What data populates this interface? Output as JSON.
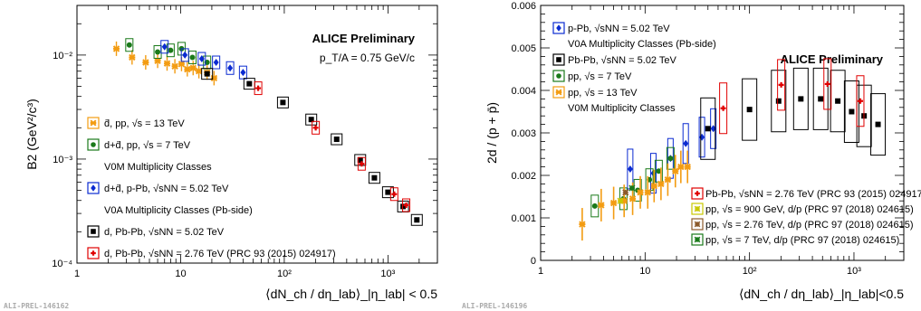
{
  "chart_data": [
    {
      "type": "scatter",
      "title": "ALICE Preliminary",
      "subtitle": "p_T/A = 0.75 GeV/c",
      "xlabel": "⟨dN_ch / dη_lab⟩_|η_lab| < 0.5",
      "ylabel": "B2 (GeV²/c³)",
      "xscale": "log",
      "yscale": "log",
      "xlim": [
        1,
        3000
      ],
      "ylim": [
        0.0001,
        0.03
      ],
      "x_tick_labels": [
        "1",
        "10",
        "10²",
        "10³"
      ],
      "y_tick_labels": [
        "10⁻⁴",
        "10⁻³",
        "10⁻²"
      ],
      "watermark": "ALI-PREL-146162",
      "legend": [
        {
          "text": "d̄, pp, √s = 13 TeV"
        },
        {
          "text": "d+d̄, pp, √s = 7 TeV"
        },
        {
          "text": "V0M Multiplicity Classes"
        },
        {
          "text": "d+d̄, p-Pb, √sNN = 5.02 TeV"
        },
        {
          "text": "V0A Multiplicity Classes (Pb-side)"
        },
        {
          "text": "d, Pb-Pb, √sNN = 5.02 TeV"
        },
        {
          "text": "d, Pb-Pb, √sNN = 2.76 TeV (PRC 93 (2015) 024917)"
        }
      ],
      "series": [
        {
          "color": "#f39c12",
          "marker": "star",
          "x": [
            2.4,
            3.4,
            4.6,
            6.0,
            7.4,
            8.8,
            10.2,
            11.6,
            13.2,
            15.0,
            18.0,
            21.0
          ],
          "y": [
            0.0115,
            0.0095,
            0.0085,
            0.0088,
            0.0083,
            0.0078,
            0.0082,
            0.0073,
            0.0075,
            0.007,
            0.0068,
            0.006
          ]
        },
        {
          "color": "#1a7a1a",
          "marker": "circle",
          "x": [
            3.2,
            6.0,
            8.0,
            10.2,
            13.0,
            18.0
          ],
          "y": [
            0.0125,
            0.0107,
            0.0111,
            0.0115,
            0.0095,
            0.0085
          ]
        },
        {
          "color": "#0b2bd1",
          "marker": "diamond",
          "x": [
            7.0,
            11.0,
            16.0,
            22.0,
            30.0,
            40.0
          ],
          "y": [
            0.012,
            0.01,
            0.0092,
            0.0085,
            0.0075,
            0.0068
          ]
        },
        {
          "color": "#000000",
          "marker": "square",
          "x": [
            18,
            46,
            97,
            182,
            320,
            540,
            740,
            1000,
            1400,
            1900
          ],
          "y": [
            0.0066,
            0.0053,
            0.0035,
            0.0024,
            0.00155,
            0.00098,
            0.00066,
            0.00048,
            0.00035,
            0.00026
          ]
        },
        {
          "color": "#e00000",
          "marker": "cross",
          "x": [
            56,
            201,
            558,
            1150,
            1500
          ],
          "y": [
            0.0048,
            0.002,
            0.0009,
            0.00046,
            0.00036
          ]
        }
      ]
    },
    {
      "type": "scatter",
      "title": "ALICE Preliminary",
      "xlabel": "⟨dN_ch / dη_lab⟩_|η_lab|<0.5",
      "ylabel": "2d / (p + p̄)",
      "xscale": "log",
      "xlim": [
        1,
        3000
      ],
      "ylim": [
        0,
        0.006
      ],
      "x_tick_labels": [
        "1",
        "10",
        "10²",
        "10³"
      ],
      "y_tick_labels": [
        "0",
        "0.001",
        "0.002",
        "0.003",
        "0.004",
        "0.005",
        "0.006"
      ],
      "watermark": "ALI-PREL-146196",
      "legend_top": [
        {
          "text": "p-Pb, √sNN = 5.02 TeV"
        },
        {
          "text": "V0A Multiplicity Classes (Pb-side)"
        },
        {
          "text": "Pb-Pb, √sNN = 5.02 TeV"
        },
        {
          "text": "pp, √s = 7 TeV"
        },
        {
          "text": "pp, √s = 13 TeV"
        },
        {
          "text": "V0M Multiplicity Classes"
        }
      ],
      "legend_bottom": [
        {
          "text": "Pb-Pb, √sNN = 2.76 TeV (PRC 93 (2015) 024917)"
        },
        {
          "text": "pp, √s = 900 GeV, d/p (PRC 97 (2018) 024615)"
        },
        {
          "text": "pp, √s = 2.76 TeV, d/p (PRC 97 (2018) 024615)"
        },
        {
          "text": "pp, √s = 7 TeV, d/p (PRC 97 (2018) 024615)"
        }
      ],
      "series": [
        {
          "color": "#0b2bd1",
          "marker": "diamond",
          "x": [
            7.2,
            12.0,
            17.5,
            24.5,
            35.0,
            45.0
          ],
          "y": [
            0.00215,
            0.00205,
            0.0024,
            0.00275,
            0.0029,
            0.0031
          ]
        },
        {
          "color": "#000000",
          "marker": "square",
          "x": [
            40,
            100,
            190,
            310,
            480,
            700,
            950,
            1250,
            1700
          ],
          "y": [
            0.0031,
            0.00355,
            0.00375,
            0.0038,
            0.0038,
            0.00375,
            0.0035,
            0.0034,
            0.0032
          ]
        },
        {
          "color": "#1a7a1a",
          "marker": "circle",
          "x": [
            3.3,
            6.2,
            8.5,
            11.0,
            13.5,
            17.5
          ],
          "y": [
            0.00128,
            0.00145,
            0.00165,
            0.0019,
            0.0021,
            0.0024
          ]
        },
        {
          "color": "#f39c12",
          "marker": "star",
          "x": [
            2.5,
            3.8,
            5.0,
            6.3,
            7.6,
            9.0,
            10.6,
            12.2,
            14.2,
            16.5,
            19.5,
            22.0,
            25.5
          ],
          "y": [
            0.00085,
            0.0013,
            0.00135,
            0.0014,
            0.00145,
            0.0016,
            0.0016,
            0.00175,
            0.0018,
            0.0019,
            0.0021,
            0.0022,
            0.0022
          ]
        },
        {
          "color": "#e00000",
          "marker": "cross",
          "x": [
            56,
            201,
            558,
            1150
          ],
          "y": [
            0.00358,
            0.00413,
            0.00415,
            0.00375
          ]
        },
        {
          "color": "#c8c800",
          "marker": "star-box",
          "x": [
            5.8
          ],
          "y": [
            0.0014
          ]
        },
        {
          "color": "#8b5a2b",
          "marker": "star-box",
          "x": [
            6.5
          ],
          "y": [
            0.0016
          ]
        },
        {
          "color": "#1a7a1a",
          "marker": "star-box",
          "x": [
            7.5
          ],
          "y": [
            0.0017
          ]
        }
      ]
    }
  ]
}
